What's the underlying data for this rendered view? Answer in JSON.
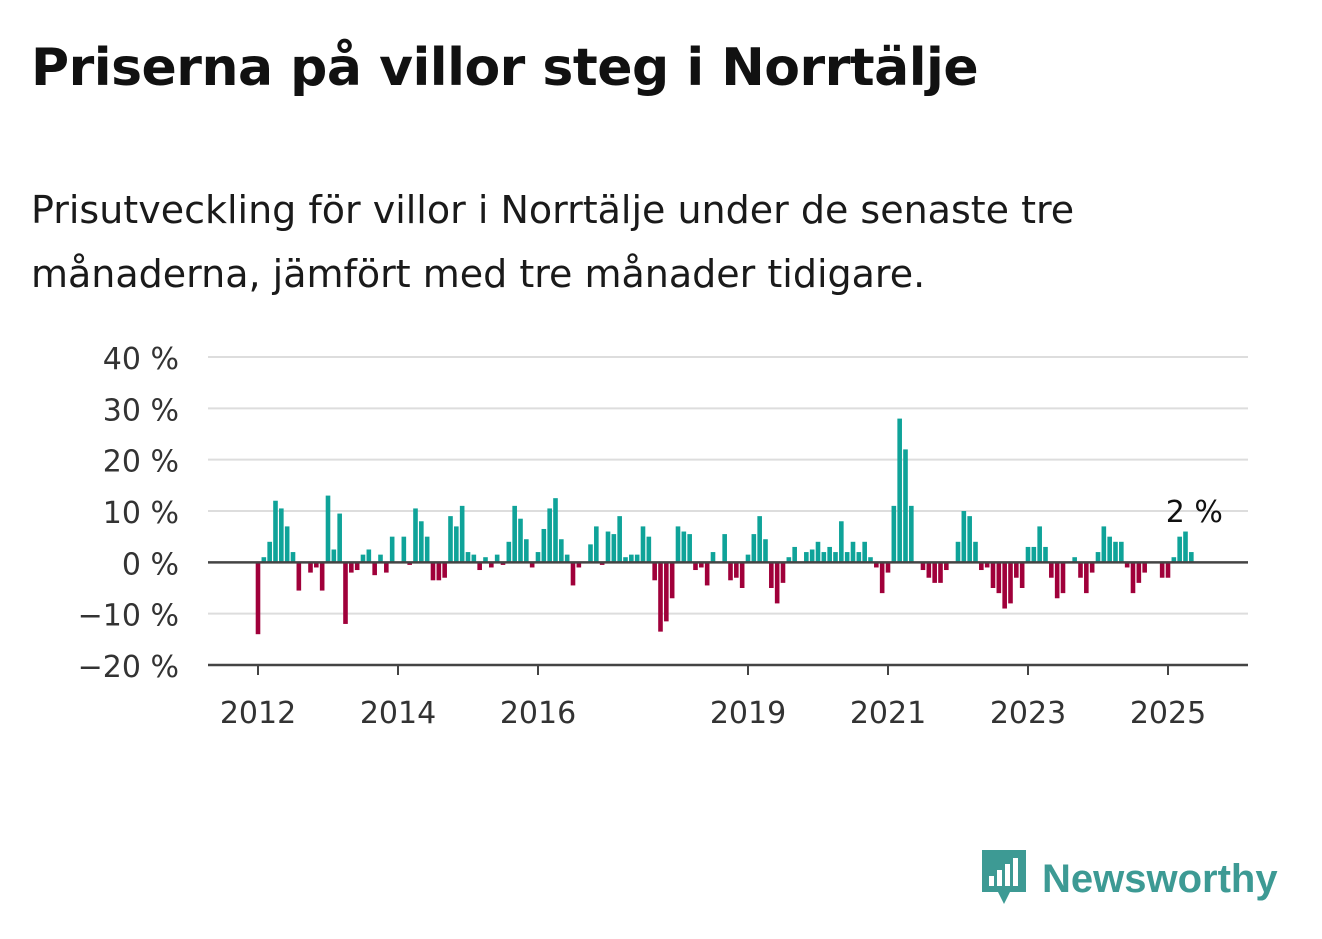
{
  "title": "Priserna på villor steg i Norrtälje",
  "subtitle": "Prisutveckling för villor i Norrtälje under de senaste tre månaderna, jämfört med tre månader tidigare.",
  "brand": {
    "name": "Newsworthy",
    "color": "#3d9a94",
    "icon": "newsworthy-logo-icon"
  },
  "chart_data": {
    "type": "bar",
    "title": "",
    "xlabel": "",
    "ylabel": "",
    "ylim": [
      -20,
      40
    ],
    "yticks": [
      40,
      30,
      20,
      10,
      0,
      -10,
      -20
    ],
    "ytick_labels": [
      "40 %",
      "30 %",
      "20 %",
      "10 %",
      "0 %",
      "−10 %",
      "−20 %"
    ],
    "xticks": [
      "2012",
      "2014",
      "2016",
      "2019",
      "2021",
      "2023",
      "2025"
    ],
    "grid": true,
    "positive_color": "#0fa399",
    "negative_color": "#a0003a",
    "last_label": "2 %",
    "start": "2012-01",
    "values": [
      -14,
      1,
      4,
      12,
      10.5,
      7,
      2,
      -5.5,
      0,
      -2,
      -1,
      -5.5,
      13,
      2.5,
      9.5,
      -12,
      -2,
      -1.5,
      1.5,
      2.5,
      -2.5,
      1.5,
      -2,
      5,
      0,
      5,
      -0.5,
      10.5,
      8,
      5,
      -3.5,
      -3.5,
      -3,
      9,
      7,
      11,
      2,
      1.5,
      -1.5,
      1,
      -1,
      1.5,
      -0.5,
      4,
      11,
      8.5,
      4.5,
      -1,
      2,
      6.5,
      10.5,
      12.5,
      4.5,
      1.5,
      -4.5,
      -1,
      0,
      3.5,
      7,
      -0.5,
      6,
      5.5,
      9,
      1,
      1.5,
      1.5,
      7,
      5,
      -3.5,
      -13.5,
      -11.5,
      -7,
      7,
      6,
      5.5,
      -1.5,
      -1,
      -4.5,
      2,
      0,
      5.5,
      -3.5,
      -3,
      -5,
      1.5,
      5.5,
      9,
      4.5,
      -5,
      -8,
      -4,
      1,
      3,
      0,
      2,
      2.5,
      4,
      2,
      3,
      2,
      8,
      2,
      4,
      2,
      4,
      1,
      -1,
      -6,
      -2,
      11,
      28,
      22,
      11,
      0,
      -1.5,
      -3,
      -4,
      -4,
      -1.5,
      0,
      4,
      10,
      9,
      4,
      -1.5,
      -1,
      -5,
      -6,
      -9,
      -8,
      -3,
      -5,
      3,
      3,
      7,
      3,
      -3,
      -7,
      -6,
      0,
      1,
      -3,
      -6,
      -2,
      2,
      7,
      5,
      4,
      4,
      -1,
      -6,
      -4,
      -2,
      0,
      0,
      -3,
      -3,
      1,
      5,
      6,
      2
    ]
  }
}
